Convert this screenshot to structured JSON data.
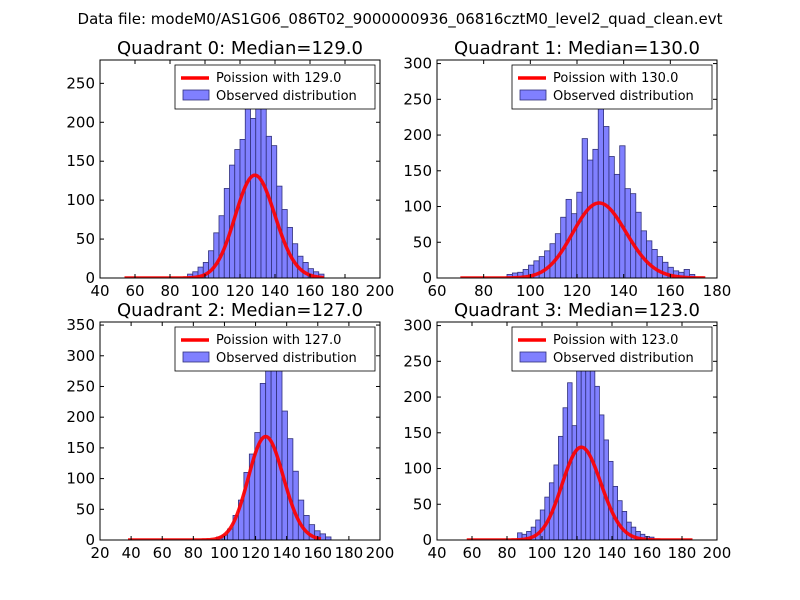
{
  "figure_title": "Data file: modeM0/AS1G06_086T02_9000000936_06816cztM0_level2_quad_clean.evt",
  "colors": {
    "bar_fill": "#8080ff",
    "bar_edge": "#30307a",
    "line": "#ff0000"
  },
  "chart_data": [
    {
      "type": "bar",
      "title": "Quadrant 0: Median=129.0",
      "legend": {
        "placement": "top-right",
        "line_label": "Poission with 129.0",
        "bar_label": "Observed distribution"
      },
      "xlim": [
        40,
        200
      ],
      "ylim": [
        0,
        280
      ],
      "xticks": [
        40,
        60,
        80,
        100,
        120,
        140,
        160,
        180,
        200
      ],
      "yticks": [
        0,
        50,
        100,
        150,
        200,
        250
      ],
      "bin_width": 3.0,
      "bins": [
        [
          90,
          5
        ],
        [
          93,
          8
        ],
        [
          96,
          14
        ],
        [
          99,
          20
        ],
        [
          102,
          35
        ],
        [
          105,
          58
        ],
        [
          108,
          80
        ],
        [
          111,
          115
        ],
        [
          114,
          145
        ],
        [
          117,
          165
        ],
        [
          120,
          178
        ],
        [
          123,
          245
        ],
        [
          126,
          205
        ],
        [
          129,
          248
        ],
        [
          132,
          262
        ],
        [
          135,
          182
        ],
        [
          138,
          170
        ],
        [
          141,
          118
        ],
        [
          144,
          88
        ],
        [
          147,
          65
        ],
        [
          150,
          44
        ],
        [
          153,
          28
        ],
        [
          156,
          20
        ],
        [
          159,
          12
        ],
        [
          162,
          8
        ],
        [
          165,
          5
        ]
      ],
      "poisson": {
        "mean": 129.0,
        "scale": 3760,
        "x_range": [
          54,
          168
        ]
      }
    },
    {
      "type": "bar",
      "title": "Quadrant 1: Median=130.0",
      "legend": {
        "placement": "top-right",
        "line_label": "Poission with 130.0",
        "bar_label": "Observed distribution"
      },
      "xlim": [
        60,
        180
      ],
      "ylim": [
        0,
        305
      ],
      "xticks": [
        60,
        80,
        100,
        120,
        140,
        160,
        180
      ],
      "yticks": [
        0,
        50,
        100,
        150,
        200,
        250,
        300
      ],
      "bin_width": 2.3,
      "bins": [
        [
          90,
          5
        ],
        [
          92.3,
          7
        ],
        [
          94.6,
          8
        ],
        [
          96.9,
          12
        ],
        [
          99.2,
          18
        ],
        [
          101.5,
          24
        ],
        [
          103.8,
          30
        ],
        [
          106.1,
          38
        ],
        [
          108.4,
          48
        ],
        [
          110.7,
          62
        ],
        [
          113,
          85
        ],
        [
          115.3,
          110
        ],
        [
          117.6,
          90
        ],
        [
          119.9,
          120
        ],
        [
          122.2,
          195
        ],
        [
          124.5,
          165
        ],
        [
          126.8,
          180
        ],
        [
          129.1,
          262
        ],
        [
          131.4,
          212
        ],
        [
          133.7,
          170
        ],
        [
          136,
          145
        ],
        [
          138.3,
          185
        ],
        [
          140.6,
          125
        ],
        [
          142.9,
          118
        ],
        [
          145.2,
          92
        ],
        [
          147.5,
          66
        ],
        [
          149.8,
          52
        ],
        [
          152.1,
          40
        ],
        [
          154.4,
          30
        ],
        [
          156.7,
          22
        ],
        [
          159,
          15
        ],
        [
          161.3,
          10
        ],
        [
          163.6,
          8
        ],
        [
          165.9,
          12
        ],
        [
          168.2,
          5
        ]
      ],
      "poisson": {
        "mean": 130.0,
        "scale": 3000,
        "x_range": [
          70,
          175
        ]
      }
    },
    {
      "type": "bar",
      "title": "Quadrant 2: Median=127.0",
      "legend": {
        "placement": "top-right",
        "line_label": "Poission with 127.0",
        "bar_label": "Observed distribution"
      },
      "xlim": [
        20,
        200
      ],
      "ylim": [
        0,
        355
      ],
      "xticks": [
        20,
        40,
        60,
        80,
        100,
        120,
        140,
        160,
        180,
        200
      ],
      "yticks": [
        0,
        50,
        100,
        150,
        200,
        250,
        300,
        350
      ],
      "bin_width": 3.5,
      "bins": [
        [
          95,
          5
        ],
        [
          98.5,
          8
        ],
        [
          102,
          18
        ],
        [
          105.5,
          40
        ],
        [
          109,
          65
        ],
        [
          112.5,
          110
        ],
        [
          116,
          140
        ],
        [
          119.5,
          175
        ],
        [
          123,
          255
        ],
        [
          126.5,
          336
        ],
        [
          130,
          290
        ],
        [
          133.5,
          290
        ],
        [
          137,
          210
        ],
        [
          140.5,
          165
        ],
        [
          144,
          112
        ],
        [
          147.5,
          65
        ],
        [
          151,
          40
        ],
        [
          154.5,
          25
        ],
        [
          158,
          15
        ],
        [
          161.5,
          10
        ],
        [
          165,
          5
        ]
      ],
      "poisson": {
        "mean": 127.0,
        "scale": 4760,
        "x_range": [
          38,
          162
        ]
      }
    },
    {
      "type": "bar",
      "title": "Quadrant 3: Median=123.0",
      "legend": {
        "placement": "top-right",
        "line_label": "Poission with 123.0",
        "bar_label": "Observed distribution"
      },
      "xlim": [
        40,
        200
      ],
      "ylim": [
        0,
        305
      ],
      "xticks": [
        40,
        60,
        80,
        100,
        120,
        140,
        160,
        180,
        200
      ],
      "yticks": [
        0,
        50,
        100,
        150,
        200,
        250,
        300
      ],
      "bin_width": 2.6,
      "bins": [
        [
          86,
          10
        ],
        [
          88.6,
          8
        ],
        [
          91.2,
          12
        ],
        [
          93.8,
          18
        ],
        [
          96.4,
          28
        ],
        [
          99,
          42
        ],
        [
          101.6,
          60
        ],
        [
          104.2,
          80
        ],
        [
          106.8,
          105
        ],
        [
          109.4,
          145
        ],
        [
          112,
          185
        ],
        [
          114.6,
          220
        ],
        [
          117.2,
          160
        ],
        [
          119.8,
          240
        ],
        [
          122.4,
          285
        ],
        [
          125,
          270
        ],
        [
          127.6,
          242
        ],
        [
          130.2,
          215
        ],
        [
          132.8,
          175
        ],
        [
          135.4,
          140
        ],
        [
          138,
          110
        ],
        [
          140.6,
          75
        ],
        [
          143.2,
          55
        ],
        [
          145.8,
          40
        ],
        [
          148.4,
          25
        ],
        [
          151,
          18
        ],
        [
          153.6,
          12
        ],
        [
          156.2,
          8
        ],
        [
          158.8,
          5
        ],
        [
          161.4,
          4
        ]
      ],
      "poisson": {
        "mean": 123.0,
        "scale": 3610,
        "x_range": [
          57,
          186
        ]
      }
    }
  ]
}
